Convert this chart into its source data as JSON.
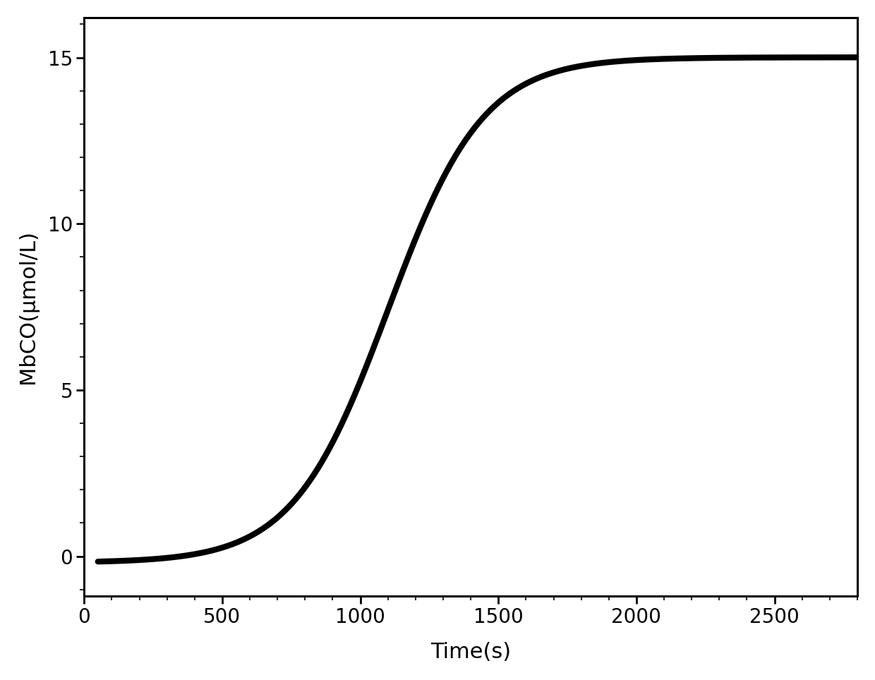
{
  "title": "",
  "xlabel": "Time(s)",
  "ylabel": "MbCO(μmol/L)",
  "xlim": [
    50,
    2800
  ],
  "ylim": [
    -1.2,
    16.2
  ],
  "xticks": [
    0,
    500,
    1000,
    1500,
    2000,
    2500
  ],
  "yticks": [
    0,
    5,
    10,
    15
  ],
  "line_color": "#000000",
  "line_width": 6,
  "background_color": "#ffffff",
  "xlabel_fontsize": 22,
  "ylabel_fontsize": 22,
  "tick_fontsize": 20,
  "lag_time": 350,
  "plateau": 15.2,
  "inflection": 1100,
  "rate": 0.0058
}
